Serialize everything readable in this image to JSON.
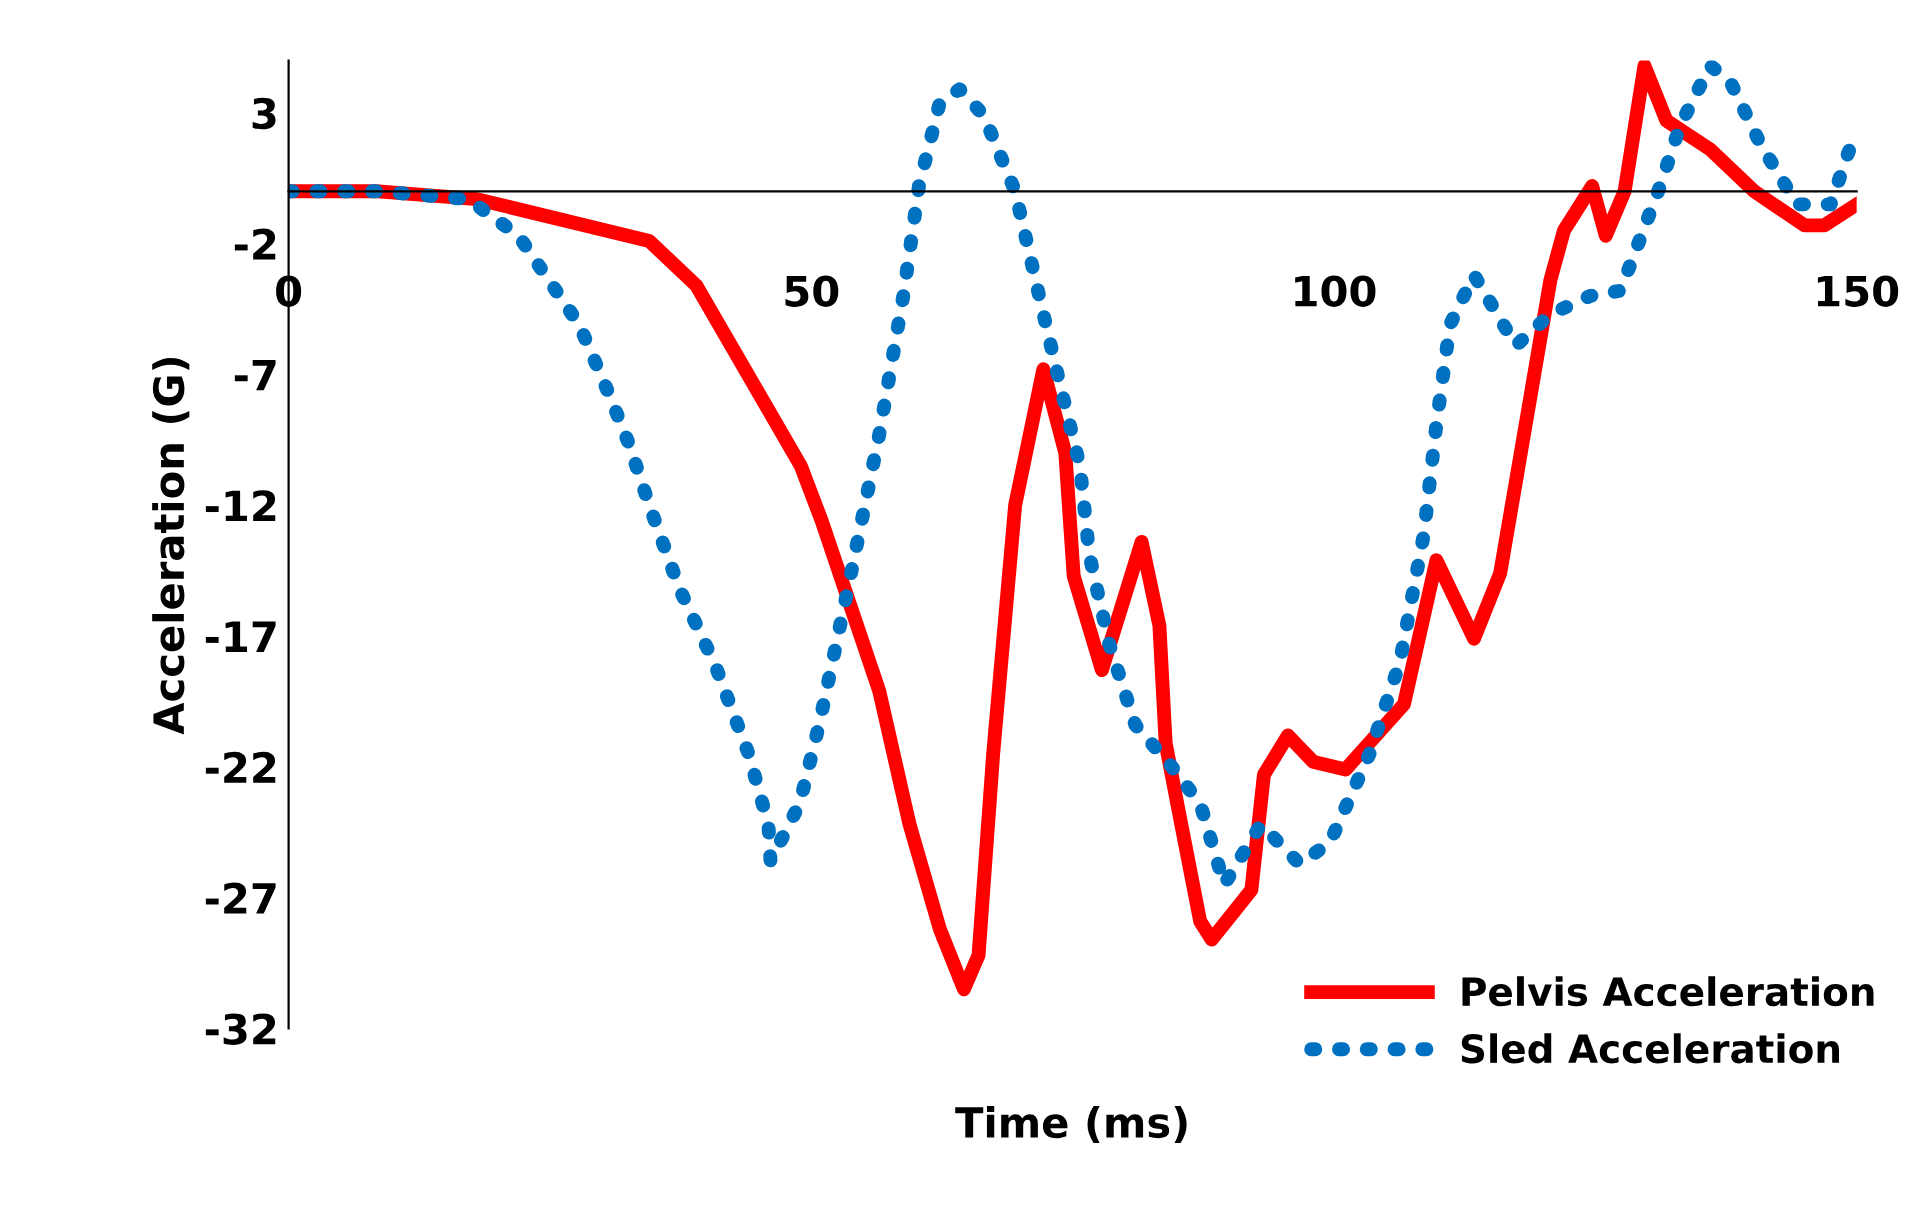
{
  "chart_data": {
    "type": "line",
    "xlabel": "Time (ms)",
    "ylabel": "Acceleration (G)",
    "xlim": [
      0,
      150
    ],
    "xticks": [
      0,
      50,
      100,
      150
    ],
    "ylim": [
      -32,
      5
    ],
    "yticks": [
      3,
      -2,
      -7,
      -12,
      -17,
      -22,
      -27,
      -32
    ],
    "grid": false,
    "legend": "bottom right",
    "series": [
      {
        "name": "Pelvis Acceleration",
        "color": "#ff0000",
        "line_style": "solid",
        "x": [
          0,
          8.6,
          18,
          34.5,
          39,
          49,
          51,
          56.5,
          59.4,
          62.3,
          64.6,
          66,
          67.4,
          69.5,
          72.2,
          74.3,
          75.1,
          77.8,
          81.6,
          83.3,
          83.9,
          85.2,
          87.2,
          88.3,
          92.1,
          93.3,
          95.6,
          98,
          101.1,
          106.7,
          109.8,
          113.4,
          115.9,
          120.7,
          122,
          124.7,
          126,
          127.8,
          129.7,
          131.8,
          136,
          140.2,
          145,
          146.9,
          150
        ],
        "values": [
          0,
          0,
          -0.3,
          -1.9,
          -3.6,
          -10.5,
          -12.6,
          -19.1,
          -24.2,
          -28.2,
          -30.5,
          -29.2,
          -21.5,
          -12,
          -6.8,
          -10,
          -14.7,
          -18.3,
          -13.4,
          -16.6,
          -21.1,
          -23.8,
          -27.9,
          -28.6,
          -26.7,
          -22.3,
          -20.8,
          -21.8,
          -22.1,
          -19.6,
          -14.1,
          -17.1,
          -14.6,
          -3.4,
          -1.5,
          0.2,
          -1.7,
          0,
          4.8,
          2.7,
          1.6,
          0,
          -1.3,
          -1.3,
          -0.5
        ]
      },
      {
        "name": "Sled Acceleration",
        "color": "#0070c0",
        "line_style": "dotted",
        "x": [
          0,
          8.6,
          17.2,
          22,
          27.8,
          30.7,
          32.6,
          34.5,
          37.4,
          40.8,
          44,
          45.9,
          46.1,
          48.9,
          50.8,
          53.6,
          56.5,
          58.8,
          60.3,
          62.3,
          64.2,
          66.5,
          69.5,
          71.8,
          73.8,
          75.7,
          76.6,
          78.5,
          81,
          84.3,
          87.2,
          89.5,
          93,
          96.7,
          99.6,
          103.4,
          106.3,
          108.6,
          109.8,
          111.1,
          113.4,
          117.4,
          120.7,
          124.5,
          127.4,
          131.2,
          133.1,
          136,
          137.9,
          140.8,
          144.3,
          147.5,
          150
        ],
        "values": [
          0,
          0,
          -0.3,
          -1.7,
          -5.1,
          -7.8,
          -9.7,
          -12,
          -15.2,
          -18.1,
          -21.5,
          -24.2,
          -25.6,
          -23.4,
          -20.3,
          -15,
          -9.3,
          -4,
          0.2,
          3.4,
          3.9,
          2.9,
          0,
          -4,
          -7.4,
          -10.5,
          -13.9,
          -17.3,
          -20.4,
          -21.9,
          -23.4,
          -26.5,
          -24.2,
          -25.7,
          -24.9,
          -21.5,
          -18,
          -13.1,
          -8.9,
          -5.1,
          -3.2,
          -5.9,
          -4.7,
          -4,
          -3.8,
          0.2,
          2.5,
          4.8,
          4.2,
          1.8,
          -0.5,
          -0.5,
          2.4
        ]
      }
    ]
  }
}
